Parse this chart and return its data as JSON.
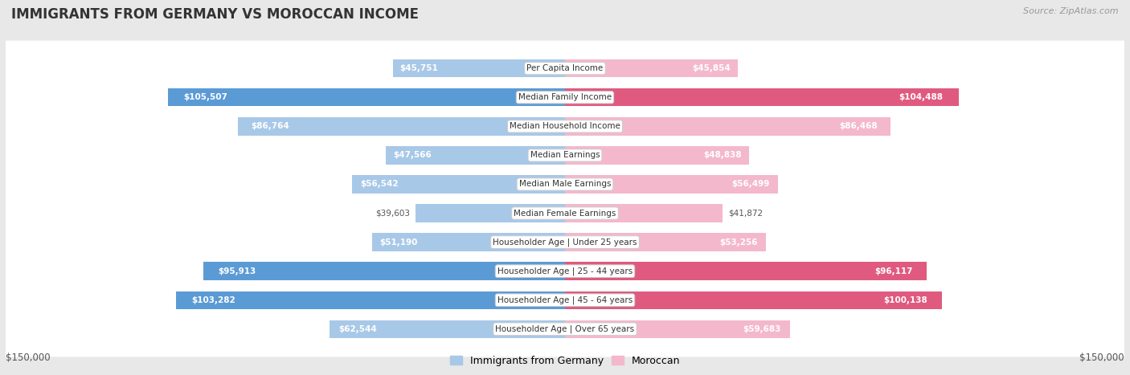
{
  "title": "IMMIGRANTS FROM GERMANY VS MOROCCAN INCOME",
  "source": "Source: ZipAtlas.com",
  "categories": [
    "Per Capita Income",
    "Median Family Income",
    "Median Household Income",
    "Median Earnings",
    "Median Male Earnings",
    "Median Female Earnings",
    "Householder Age | Under 25 years",
    "Householder Age | 25 - 44 years",
    "Householder Age | 45 - 64 years",
    "Householder Age | Over 65 years"
  ],
  "germany_values": [
    45751,
    105507,
    86764,
    47566,
    56542,
    39603,
    51190,
    95913,
    103282,
    62544
  ],
  "moroccan_values": [
    45854,
    104488,
    86468,
    48838,
    56499,
    41872,
    53256,
    96117,
    100138,
    59683
  ],
  "germany_color_light": "#a8c8e8",
  "germany_color_strong": "#5b9bd5",
  "moroccan_color_light": "#f4b8cc",
  "moroccan_color_strong": "#e05a80",
  "max_value": 150000,
  "legend_germany": "Immigrants from Germany",
  "legend_moroccan": "Moroccan",
  "background_color": "#e8e8e8",
  "row_bg_color": "#ffffff",
  "title_fontsize": 12,
  "source_fontsize": 8,
  "label_fontsize": 7.5,
  "value_fontsize": 7.5,
  "threshold_strong": 0.6
}
